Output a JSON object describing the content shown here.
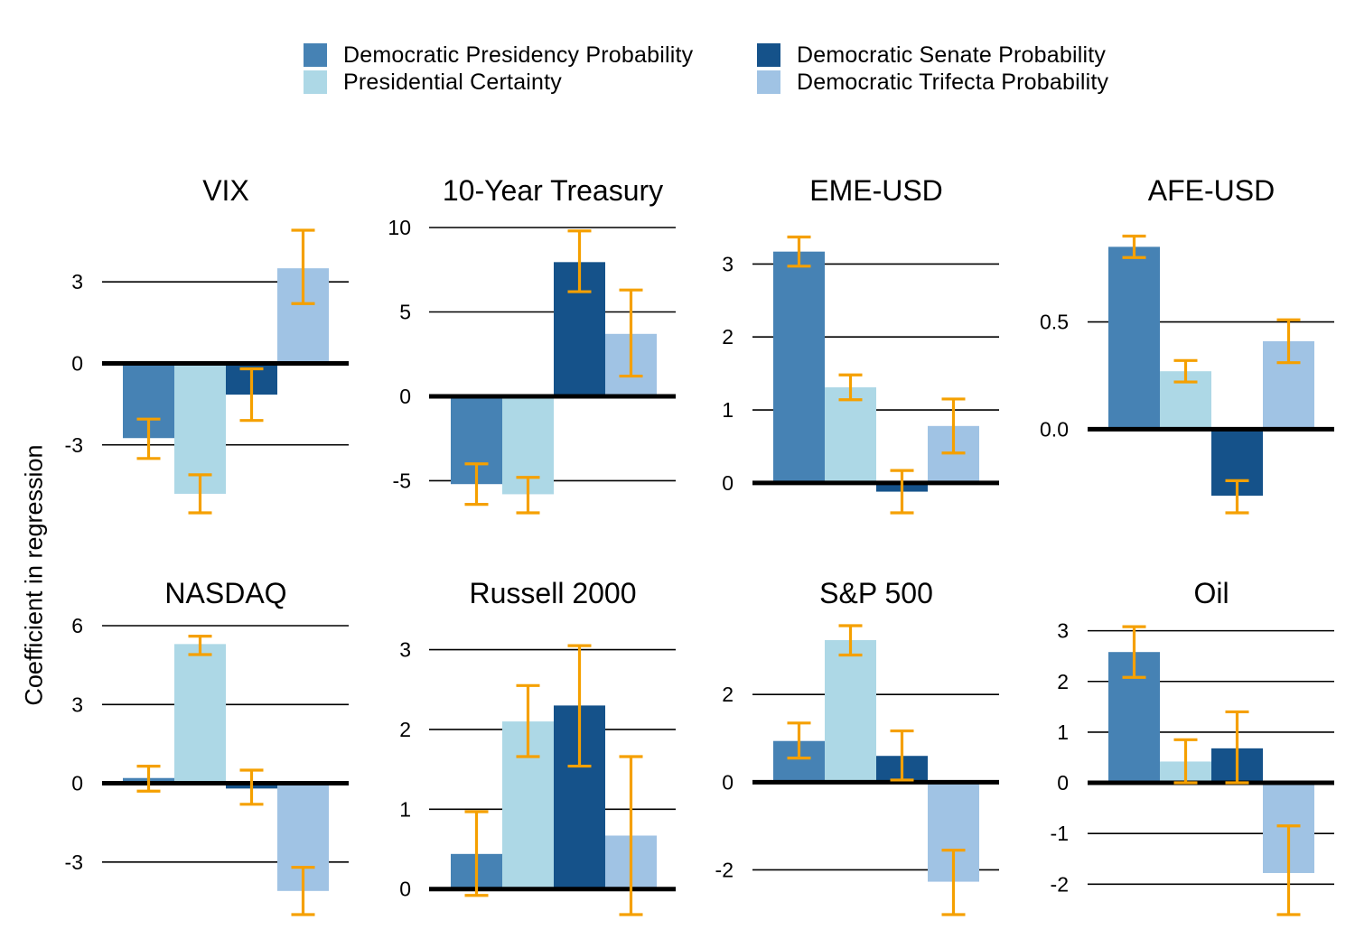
{
  "y_axis_label": "Coefficient in regression",
  "legend": [
    {
      "label": "Democratic Presidency Probability",
      "color": "#4682b4"
    },
    {
      "label": "Democratic Senate Probability",
      "color": "#15528a"
    },
    {
      "label": "Presidential Certainty",
      "color": "#add8e6"
    },
    {
      "label": "Democratic Trifecta Probability",
      "color": "#a0c3e4"
    }
  ],
  "error_bar_color": "#f5a000",
  "chart_data": [
    {
      "type": "bar",
      "title": "VIX",
      "categories": [
        "Democratic Presidency Probability",
        "Presidential Certainty",
        "Democratic Senate Probability",
        "Democratic Trifecta Probability"
      ],
      "values": [
        -2.75,
        -4.8,
        -1.15,
        3.5
      ],
      "ci": [
        [
          -3.5,
          -2.05
        ],
        [
          -5.5,
          -4.1
        ],
        [
          -2.1,
          -0.2
        ],
        [
          2.2,
          4.9
        ]
      ],
      "ylim": [
        -5.5,
        5.0
      ],
      "ticks": [
        -3,
        0,
        3
      ],
      "tick_labels": [
        "-3",
        "0",
        "3"
      ]
    },
    {
      "type": "bar",
      "title": "10-Year Treasury",
      "categories": [
        "Democratic Presidency Probability",
        "Presidential Certainty",
        "Democratic Senate Probability",
        "Democratic Trifecta Probability"
      ],
      "values": [
        -5.2,
        -5.8,
        7.95,
        3.7
      ],
      "ci": [
        [
          -6.4,
          -4.0
        ],
        [
          -6.9,
          -4.8
        ],
        [
          6.2,
          9.8
        ],
        [
          1.2,
          6.3
        ]
      ],
      "ylim": [
        -6.9,
        10.0
      ],
      "ticks": [
        -5,
        0,
        5,
        10
      ],
      "tick_labels": [
        "-5",
        "0",
        "5",
        "10"
      ]
    },
    {
      "type": "bar",
      "title": "EME-USD",
      "categories": [
        "Democratic Presidency Probability",
        "Presidential Certainty",
        "Democratic Senate Probability",
        "Democratic Trifecta Probability"
      ],
      "values": [
        3.17,
        1.31,
        -0.12,
        0.78
      ],
      "ci": [
        [
          2.97,
          3.37
        ],
        [
          1.14,
          1.48
        ],
        [
          -0.41,
          0.17
        ],
        [
          0.41,
          1.15
        ]
      ],
      "ylim": [
        -0.41,
        3.5
      ],
      "ticks": [
        0,
        1,
        2,
        3
      ],
      "tick_labels": [
        "0",
        "1",
        "2",
        "3"
      ]
    },
    {
      "type": "bar",
      "title": "AFE-USD",
      "categories": [
        "Democratic Presidency Probability",
        "Presidential Certainty",
        "Democratic Senate Probability",
        "Democratic Trifecta Probability"
      ],
      "values": [
        0.85,
        0.27,
        -0.31,
        0.41
      ],
      "ci": [
        [
          0.8,
          0.9
        ],
        [
          0.22,
          0.32
        ],
        [
          -0.39,
          -0.24
        ],
        [
          0.31,
          0.51
        ]
      ],
      "ylim": [
        -0.39,
        0.94
      ],
      "ticks": [
        0.0,
        0.5
      ],
      "tick_labels": [
        "0.0",
        "0.5"
      ]
    },
    {
      "type": "bar",
      "title": "NASDAQ",
      "categories": [
        "Democratic Presidency Probability",
        "Presidential Certainty",
        "Democratic Senate Probability",
        "Democratic Trifecta Probability"
      ],
      "values": [
        0.2,
        5.3,
        -0.2,
        -4.1
      ],
      "ci": [
        [
          -0.3,
          0.65
        ],
        [
          4.9,
          5.6
        ],
        [
          -0.8,
          0.5
        ],
        [
          -5.0,
          -3.2
        ]
      ],
      "ylim": [
        -5.0,
        6.0
      ],
      "ticks": [
        -3,
        0,
        3,
        6
      ],
      "tick_labels": [
        "-3",
        "0",
        "3",
        "6"
      ]
    },
    {
      "type": "bar",
      "title": "Russell 2000",
      "categories": [
        "Democratic Presidency Probability",
        "Presidential Certainty",
        "Democratic Senate Probability",
        "Democratic Trifecta Probability"
      ],
      "values": [
        0.44,
        2.1,
        2.3,
        0.67
      ],
      "ci": [
        [
          -0.08,
          0.97
        ],
        [
          1.66,
          2.55
        ],
        [
          1.54,
          3.05
        ],
        [
          -0.32,
          1.66
        ]
      ],
      "ylim": [
        -0.32,
        3.3
      ],
      "ticks": [
        0,
        1,
        2,
        3
      ],
      "tick_labels": [
        "0",
        "1",
        "2",
        "3"
      ]
    },
    {
      "type": "bar",
      "title": "S&P 500",
      "categories": [
        "Democratic Presidency Probability",
        "Presidential Certainty",
        "Democratic Senate Probability",
        "Democratic Trifecta Probability"
      ],
      "values": [
        0.94,
        3.24,
        0.6,
        -2.27
      ],
      "ci": [
        [
          0.55,
          1.35
        ],
        [
          2.9,
          3.57
        ],
        [
          0.05,
          1.17
        ],
        [
          -3.02,
          -1.55
        ]
      ],
      "ylim": [
        -3.02,
        3.57
      ],
      "ticks": [
        -2,
        0,
        2
      ],
      "tick_labels": [
        "-2",
        "0",
        "2"
      ]
    },
    {
      "type": "bar",
      "title": "Oil",
      "categories": [
        "Democratic Presidency Probability",
        "Presidential Certainty",
        "Democratic Senate Probability",
        "Democratic Trifecta Probability"
      ],
      "values": [
        2.58,
        0.42,
        0.68,
        -1.78
      ],
      "ci": [
        [
          2.08,
          3.08
        ],
        [
          0.0,
          0.85
        ],
        [
          0.0,
          1.4
        ],
        [
          -2.6,
          -0.85
        ]
      ],
      "ylim": [
        -2.6,
        3.1
      ],
      "ticks": [
        -2,
        -1,
        0,
        1,
        2,
        3
      ],
      "tick_labels": [
        "-2",
        "-1",
        "0",
        "1",
        "2",
        "3"
      ]
    }
  ]
}
